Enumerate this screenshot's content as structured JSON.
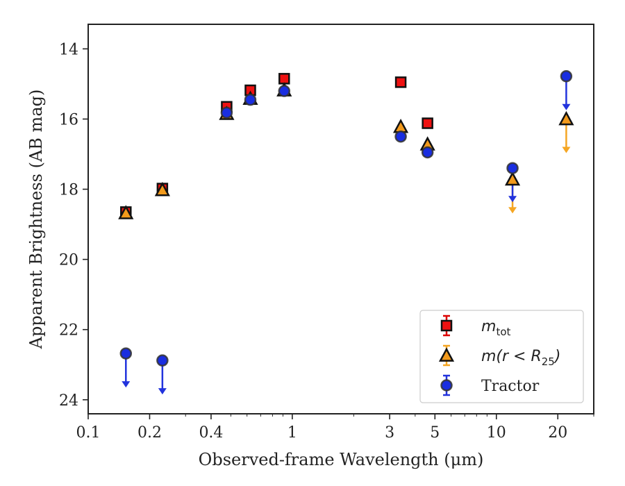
{
  "chart_data": {
    "type": "scatter",
    "xlabel": "Observed-frame Wavelength (μm)",
    "ylabel": "Apparent Brightness (AB mag)",
    "xscale": "log",
    "xlim": [
      0.1,
      30
    ],
    "ylim": [
      24.4,
      13.3
    ],
    "y_inverted": true,
    "xticks": [
      {
        "value": 0.1,
        "label": "0.1"
      },
      {
        "value": 0.2,
        "label": "0.2"
      },
      {
        "value": 0.4,
        "label": "0.4"
      },
      {
        "value": 1,
        "label": "1"
      },
      {
        "value": 3,
        "label": "3"
      },
      {
        "value": 5,
        "label": "5"
      },
      {
        "value": 10,
        "label": "10"
      },
      {
        "value": 20,
        "label": "20"
      }
    ],
    "yticks": [
      {
        "value": 14,
        "label": "14"
      },
      {
        "value": 16,
        "label": "16"
      },
      {
        "value": 18,
        "label": "18"
      },
      {
        "value": 20,
        "label": "20"
      },
      {
        "value": 22,
        "label": "22"
      },
      {
        "value": 24,
        "label": "24"
      }
    ],
    "grid": false,
    "legend_position": "bottom-right",
    "series": [
      {
        "name": "m_tot",
        "label_main": "m",
        "label_sub": "tot",
        "marker": "square",
        "face_color": "#ee1111",
        "error_color": "#dd0000",
        "points": [
          {
            "x": 0.153,
            "y": 18.65
          },
          {
            "x": 0.231,
            "y": 17.98
          },
          {
            "x": 0.477,
            "y": 15.65
          },
          {
            "x": 0.623,
            "y": 15.18
          },
          {
            "x": 0.913,
            "y": 14.85
          },
          {
            "x": 3.4,
            "y": 14.95
          },
          {
            "x": 4.6,
            "y": 16.12
          }
        ]
      },
      {
        "name": "m(r<R25)",
        "label_main": "m(r < R",
        "label_sub": "25",
        "label_end": ")",
        "marker": "triangle",
        "face_color": "#f29a1c",
        "error_color": "#f5a623",
        "points": [
          {
            "x": 0.153,
            "y": 18.68
          },
          {
            "x": 0.231,
            "y": 18.02
          },
          {
            "x": 0.477,
            "y": 15.85
          },
          {
            "x": 0.623,
            "y": 15.42
          },
          {
            "x": 0.913,
            "y": 15.18
          },
          {
            "x": 3.4,
            "y": 16.22
          },
          {
            "x": 4.6,
            "y": 16.72
          },
          {
            "x": 12.0,
            "y": 17.72,
            "upper_limit": true
          },
          {
            "x": 22.0,
            "y": 16.0,
            "upper_limit": true
          }
        ]
      },
      {
        "name": "Tractor",
        "label_main": "Tractor",
        "marker": "circle",
        "face_color": "#1a2ee0",
        "error_color": "#2233dd",
        "points": [
          {
            "x": 0.153,
            "y": 22.68,
            "upper_limit": true
          },
          {
            "x": 0.231,
            "y": 22.88,
            "upper_limit": true
          },
          {
            "x": 0.477,
            "y": 15.82
          },
          {
            "x": 0.623,
            "y": 15.45
          },
          {
            "x": 0.913,
            "y": 15.2
          },
          {
            "x": 3.4,
            "y": 16.5
          },
          {
            "x": 4.6,
            "y": 16.95
          },
          {
            "x": 12.0,
            "y": 17.4,
            "upper_limit": true
          },
          {
            "x": 22.0,
            "y": 14.78,
            "upper_limit": true
          }
        ]
      }
    ]
  }
}
